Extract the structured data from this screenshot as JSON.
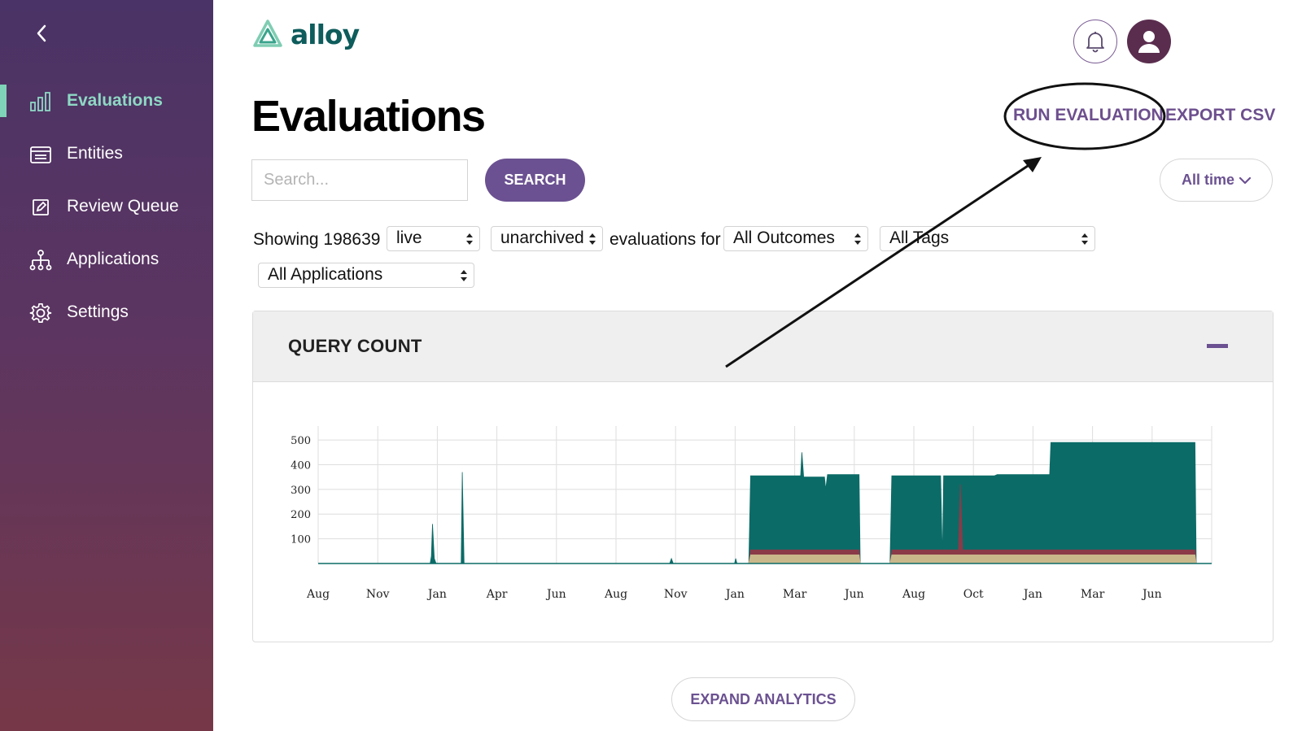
{
  "sidebar": {
    "items": [
      {
        "label": "Evaluations",
        "icon": "bar-chart-icon",
        "active": true
      },
      {
        "label": "Entities",
        "icon": "list-card-icon"
      },
      {
        "label": "Review Queue",
        "icon": "edit-icon"
      },
      {
        "label": "Applications",
        "icon": "hierarchy-icon"
      },
      {
        "label": "Settings",
        "icon": "gear-icon"
      }
    ]
  },
  "header": {
    "logo_text": "alloy"
  },
  "page": {
    "title": "Evaluations",
    "run_evaluation": "RUN EVALUATION",
    "export_csv": "EXPORT CSV"
  },
  "search": {
    "placeholder": "Search...",
    "button": "SEARCH"
  },
  "time_filter": {
    "label": "All time"
  },
  "filters": {
    "showing_prefix": "Showing 198639",
    "environment": "live",
    "archive_state": "unarchived",
    "middle_text": "evaluations for",
    "outcomes": "All Outcomes",
    "tags": "All Tags",
    "applications": "All Applications"
  },
  "panel": {
    "title": "QUERY COUNT"
  },
  "expand_button": "EXPAND ANALYTICS",
  "colors": {
    "sidebar_top": "#4a3366",
    "sidebar_bottom": "#763848",
    "accent_purple": "#6b5191",
    "active_teal": "#8ed8c4",
    "series_teal": "#0b6b67",
    "series_red": "#8b3a48",
    "series_tan": "#c9b88a"
  },
  "chart_data": {
    "type": "area",
    "title": "QUERY COUNT",
    "xlabel": "",
    "ylabel": "",
    "ylim": [
      0,
      530
    ],
    "yticks": [
      100,
      200,
      300,
      400,
      500
    ],
    "xticks": [
      "Aug",
      "Nov",
      "Jan",
      "Apr",
      "Jun",
      "Aug",
      "Nov",
      "Jan",
      "Mar",
      "Jun",
      "Aug",
      "Oct",
      "Jan",
      "Mar",
      "Jun"
    ],
    "grid": true,
    "x_range": [
      0,
      15
    ],
    "series": [
      {
        "values": [
          [
            0,
            0
          ],
          [
            1.88,
            0
          ],
          [
            1.9,
            30
          ],
          [
            1.92,
            160
          ],
          [
            1.95,
            20
          ],
          [
            1.98,
            0
          ],
          [
            2.4,
            0
          ],
          [
            2.42,
            370
          ],
          [
            2.45,
            0
          ],
          [
            5.9,
            0
          ],
          [
            5.93,
            20
          ],
          [
            5.96,
            0
          ],
          [
            6.99,
            0
          ],
          [
            7.01,
            20
          ],
          [
            7.03,
            0
          ],
          [
            7.23,
            0
          ],
          [
            7.26,
            355
          ],
          [
            8.1,
            355
          ],
          [
            8.12,
            450
          ],
          [
            8.15,
            350
          ],
          [
            8.5,
            350
          ],
          [
            8.52,
            300
          ],
          [
            8.55,
            360
          ],
          [
            9.08,
            360
          ],
          [
            9.1,
            0
          ],
          [
            9.6,
            0
          ],
          [
            9.63,
            355
          ],
          [
            10.45,
            355
          ],
          [
            10.48,
            20
          ],
          [
            10.5,
            355
          ],
          [
            11.35,
            355
          ],
          [
            11.4,
            360
          ],
          [
            12.28,
            360
          ],
          [
            12.3,
            490
          ],
          [
            14.72,
            490
          ],
          [
            14.74,
            0
          ]
        ]
      },
      {
        "values": [
          [
            0,
            0
          ],
          [
            7.23,
            0
          ],
          [
            7.26,
            55
          ],
          [
            9.08,
            55
          ],
          [
            9.1,
            0
          ],
          [
            9.6,
            0
          ],
          [
            9.63,
            55
          ],
          [
            10.75,
            55
          ],
          [
            10.78,
            320
          ],
          [
            10.82,
            55
          ],
          [
            14.72,
            55
          ],
          [
            14.74,
            0
          ]
        ]
      },
      {
        "values": [
          [
            0,
            0
          ],
          [
            7.23,
            0
          ],
          [
            7.26,
            35
          ],
          [
            9.08,
            35
          ],
          [
            9.1,
            0
          ],
          [
            9.6,
            0
          ],
          [
            9.63,
            35
          ],
          [
            14.72,
            35
          ],
          [
            14.74,
            0
          ]
        ]
      }
    ]
  }
}
